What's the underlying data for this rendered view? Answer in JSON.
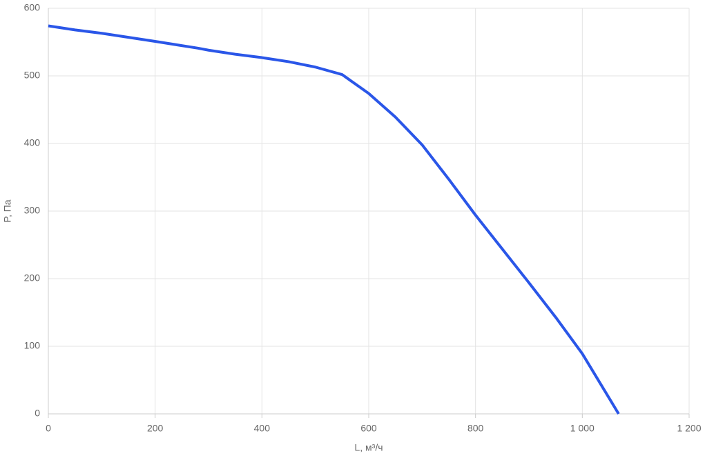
{
  "chart_data": {
    "type": "line",
    "x_label": "L, м³/ч",
    "y_label": "P, Па",
    "x": [
      0,
      50,
      100,
      150,
      200,
      280,
      300,
      350,
      400,
      450,
      500,
      550,
      600,
      650,
      700,
      750,
      800,
      850,
      900,
      950,
      1000,
      1068
    ],
    "values": [
      574,
      568,
      563,
      557,
      551,
      541,
      538,
      532,
      527,
      521,
      513,
      502,
      474,
      439,
      398,
      347,
      294,
      244,
      194,
      143,
      89,
      0
    ],
    "color": "#2a56e8",
    "xlim": [
      0,
      1200
    ],
    "xticks": [
      0,
      200,
      400,
      600,
      800,
      {
        "value": 1000,
        "label": "1 000"
      },
      {
        "value": 1200,
        "label": "1 200"
      }
    ],
    "ylim": [
      0,
      600
    ],
    "yticks": [
      0,
      100,
      200,
      300,
      400,
      500,
      600
    ],
    "grid": true
  }
}
